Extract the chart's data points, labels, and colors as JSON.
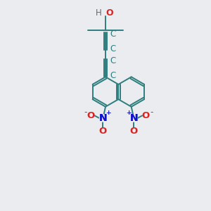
{
  "bg_color": "#eaecf0",
  "bond_color": "#2d7d7d",
  "bond_width": 1.4,
  "atom_colors": {
    "C": "#2d7d7d",
    "O": "#dd2222",
    "H": "#666666",
    "N": "#1111cc",
    "Onitro": "#dd2222"
  },
  "font_size": 8.5
}
